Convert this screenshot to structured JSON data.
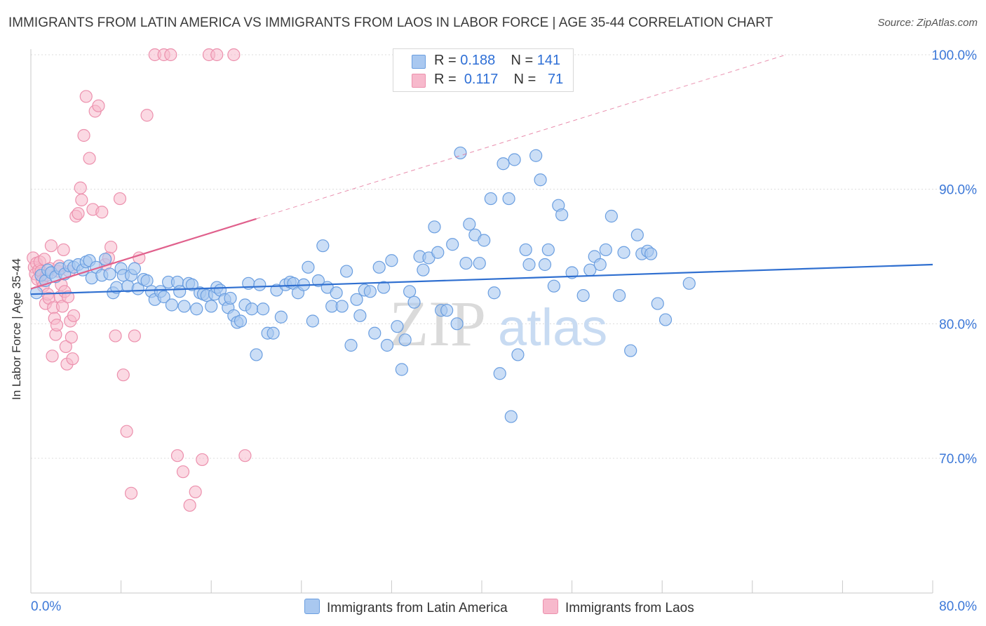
{
  "header": {
    "title": "IMMIGRANTS FROM LATIN AMERICA VS IMMIGRANTS FROM LAOS IN LABOR FORCE | AGE 35-44 CORRELATION CHART",
    "source": "Source: ZipAtlas.com"
  },
  "legend": {
    "r_label": "R =",
    "n_label": "N =",
    "series_a": {
      "r": "0.188",
      "n": "141"
    },
    "series_b": {
      "r": "0.117",
      "n": "71"
    }
  },
  "watermark": {
    "part1": "ZIP",
    "part2": "atlas"
  },
  "chart_data": {
    "type": "scatter",
    "title": "IMMIGRANTS FROM LATIN AMERICA VS IMMIGRANTS FROM LAOS IN LABOR FORCE | AGE 35-44 CORRELATION CHART",
    "xlabel": "",
    "ylabel": "In Labor Force | Age 35-44",
    "xlim": [
      0,
      80
    ],
    "ylim": [
      61,
      101
    ],
    "x_tick_labels": [
      "0.0%",
      "80.0%"
    ],
    "y_ticks": [
      70,
      80,
      90,
      100
    ],
    "y_tick_labels": [
      "70.0%",
      "80.0%",
      "90.0%",
      "100.0%"
    ],
    "grid": true,
    "legend_position": "top-center",
    "colors": {
      "series_a_fill": "#a9c8f0",
      "series_a_stroke": "#6a9ee0",
      "series_a_line": "#2f6fd0",
      "series_b_fill": "#f7b9cc",
      "series_b_stroke": "#ec90ad",
      "series_b_line": "#e0608c",
      "tick_label": "#3c78d8"
    },
    "series": [
      {
        "name": "Immigrants from Latin America",
        "r": 0.188,
        "n": 141,
        "trend": {
          "x": [
            0,
            80
          ],
          "y": [
            82.2,
            84.4
          ]
        },
        "points": [
          [
            0.5,
            82.3
          ],
          [
            0.9,
            83.6
          ],
          [
            1.3,
            83.2
          ],
          [
            1.5,
            84.0
          ],
          [
            1.8,
            83.8
          ],
          [
            2.2,
            83.5
          ],
          [
            2.6,
            84.1
          ],
          [
            3.0,
            83.7
          ],
          [
            3.4,
            84.3
          ],
          [
            3.8,
            84.2
          ],
          [
            4.2,
            84.4
          ],
          [
            4.6,
            84.0
          ],
          [
            4.9,
            84.6
          ],
          [
            5.2,
            84.7
          ],
          [
            5.4,
            83.4
          ],
          [
            5.8,
            84.2
          ],
          [
            6.3,
            83.6
          ],
          [
            6.6,
            84.8
          ],
          [
            7.0,
            83.7
          ],
          [
            7.3,
            82.3
          ],
          [
            7.6,
            82.7
          ],
          [
            8.0,
            84.1
          ],
          [
            8.2,
            83.6
          ],
          [
            8.6,
            82.8
          ],
          [
            8.9,
            83.6
          ],
          [
            9.2,
            84.1
          ],
          [
            9.5,
            82.6
          ],
          [
            10.0,
            83.3
          ],
          [
            10.3,
            83.2
          ],
          [
            10.7,
            82.4
          ],
          [
            11.0,
            81.8
          ],
          [
            11.5,
            82.4
          ],
          [
            11.8,
            82.0
          ],
          [
            12.2,
            83.1
          ],
          [
            12.5,
            81.4
          ],
          [
            13.0,
            83.1
          ],
          [
            13.2,
            82.4
          ],
          [
            13.6,
            81.3
          ],
          [
            14.0,
            83.0
          ],
          [
            14.3,
            82.9
          ],
          [
            14.7,
            81.1
          ],
          [
            15.0,
            82.3
          ],
          [
            15.3,
            82.2
          ],
          [
            15.6,
            82.1
          ],
          [
            16.0,
            81.3
          ],
          [
            16.3,
            82.2
          ],
          [
            16.5,
            82.7
          ],
          [
            16.8,
            82.5
          ],
          [
            17.2,
            81.8
          ],
          [
            17.5,
            81.2
          ],
          [
            17.7,
            81.9
          ],
          [
            18.0,
            80.6
          ],
          [
            18.3,
            80.1
          ],
          [
            18.6,
            80.2
          ],
          [
            19.0,
            81.4
          ],
          [
            19.3,
            83.0
          ],
          [
            19.6,
            81.1
          ],
          [
            20.0,
            77.7
          ],
          [
            20.3,
            82.9
          ],
          [
            20.6,
            81.1
          ],
          [
            21.0,
            79.3
          ],
          [
            21.5,
            79.3
          ],
          [
            21.8,
            82.5
          ],
          [
            22.2,
            80.5
          ],
          [
            22.6,
            82.9
          ],
          [
            23.0,
            83.1
          ],
          [
            23.3,
            83.0
          ],
          [
            23.7,
            82.3
          ],
          [
            24.2,
            82.9
          ],
          [
            24.6,
            84.2
          ],
          [
            25.0,
            80.2
          ],
          [
            25.5,
            83.2
          ],
          [
            25.9,
            85.8
          ],
          [
            26.3,
            82.7
          ],
          [
            26.7,
            81.3
          ],
          [
            27.1,
            82.3
          ],
          [
            27.6,
            81.3
          ],
          [
            28.0,
            83.9
          ],
          [
            28.4,
            78.4
          ],
          [
            28.9,
            81.8
          ],
          [
            29.2,
            80.6
          ],
          [
            29.6,
            82.5
          ],
          [
            30.1,
            82.4
          ],
          [
            30.5,
            79.3
          ],
          [
            30.9,
            84.2
          ],
          [
            31.3,
            82.7
          ],
          [
            31.6,
            78.4
          ],
          [
            32.0,
            84.7
          ],
          [
            32.5,
            79.8
          ],
          [
            32.9,
            76.6
          ],
          [
            33.2,
            78.8
          ],
          [
            33.6,
            82.4
          ],
          [
            34.0,
            81.6
          ],
          [
            34.5,
            85.0
          ],
          [
            34.8,
            84.0
          ],
          [
            35.3,
            84.9
          ],
          [
            35.8,
            87.2
          ],
          [
            36.1,
            85.3
          ],
          [
            36.4,
            81.0
          ],
          [
            36.9,
            81.0
          ],
          [
            37.4,
            85.9
          ],
          [
            37.8,
            80.0
          ],
          [
            38.1,
            92.7
          ],
          [
            38.6,
            84.5
          ],
          [
            38.9,
            87.4
          ],
          [
            39.4,
            86.6
          ],
          [
            39.8,
            84.5
          ],
          [
            40.2,
            86.2
          ],
          [
            40.8,
            89.3
          ],
          [
            41.1,
            82.3
          ],
          [
            41.6,
            76.3
          ],
          [
            41.9,
            91.9
          ],
          [
            42.4,
            89.3
          ],
          [
            42.6,
            73.1
          ],
          [
            42.9,
            92.2
          ],
          [
            43.2,
            77.7
          ],
          [
            43.9,
            85.5
          ],
          [
            44.2,
            84.4
          ],
          [
            44.8,
            92.5
          ],
          [
            45.2,
            90.7
          ],
          [
            45.6,
            84.4
          ],
          [
            45.9,
            85.5
          ],
          [
            46.4,
            82.8
          ],
          [
            46.8,
            88.8
          ],
          [
            47.1,
            88.1
          ],
          [
            48.0,
            83.8
          ],
          [
            49.0,
            82.1
          ],
          [
            49.6,
            84.0
          ],
          [
            50.0,
            85.0
          ],
          [
            50.5,
            84.4
          ],
          [
            51.0,
            85.5
          ],
          [
            51.5,
            88.0
          ],
          [
            52.2,
            82.1
          ],
          [
            52.6,
            85.3
          ],
          [
            53.2,
            78.0
          ],
          [
            53.8,
            86.6
          ],
          [
            54.2,
            85.2
          ],
          [
            54.7,
            85.4
          ],
          [
            55.0,
            85.2
          ],
          [
            55.6,
            81.5
          ],
          [
            56.3,
            80.3
          ],
          [
            58.4,
            83.0
          ]
        ]
      },
      {
        "name": "Immigrants from Laos",
        "r": 0.117,
        "n": 71,
        "trend": {
          "x": [
            0,
            20
          ],
          "y": [
            82.6,
            87.8
          ]
        },
        "trend_extension": {
          "x": [
            20,
            67
          ],
          "y": [
            87.8,
            100.0
          ]
        },
        "points": [
          [
            0.2,
            84.9
          ],
          [
            0.3,
            84.2
          ],
          [
            0.4,
            83.7
          ],
          [
            0.5,
            84.5
          ],
          [
            0.6,
            83.3
          ],
          [
            0.7,
            84.0
          ],
          [
            0.8,
            84.6
          ],
          [
            0.9,
            83.9
          ],
          [
            1.0,
            83.2
          ],
          [
            1.1,
            82.8
          ],
          [
            1.2,
            84.8
          ],
          [
            1.3,
            81.5
          ],
          [
            1.4,
            83.6
          ],
          [
            1.5,
            82.2
          ],
          [
            1.6,
            81.9
          ],
          [
            1.7,
            84.1
          ],
          [
            1.8,
            85.8
          ],
          [
            1.9,
            77.6
          ],
          [
            2.0,
            81.2
          ],
          [
            2.1,
            80.4
          ],
          [
            2.2,
            79.2
          ],
          [
            2.3,
            79.9
          ],
          [
            2.4,
            83.9
          ],
          [
            2.5,
            84.3
          ],
          [
            2.6,
            82.0
          ],
          [
            2.7,
            82.9
          ],
          [
            2.8,
            81.3
          ],
          [
            2.9,
            85.5
          ],
          [
            3.0,
            82.4
          ],
          [
            3.1,
            78.3
          ],
          [
            3.2,
            77.0
          ],
          [
            3.3,
            82.0
          ],
          [
            3.4,
            83.9
          ],
          [
            3.5,
            80.2
          ],
          [
            3.6,
            79.0
          ],
          [
            3.7,
            77.4
          ],
          [
            3.8,
            80.6
          ],
          [
            4.0,
            88.0
          ],
          [
            4.2,
            88.2
          ],
          [
            4.4,
            90.1
          ],
          [
            4.5,
            89.2
          ],
          [
            4.7,
            94.0
          ],
          [
            4.9,
            96.9
          ],
          [
            5.2,
            92.3
          ],
          [
            5.5,
            88.5
          ],
          [
            5.7,
            95.8
          ],
          [
            6.0,
            96.2
          ],
          [
            6.3,
            88.3
          ],
          [
            6.6,
            84.4
          ],
          [
            6.9,
            84.9
          ],
          [
            7.1,
            85.7
          ],
          [
            7.5,
            79.1
          ],
          [
            7.9,
            89.3
          ],
          [
            8.2,
            76.2
          ],
          [
            8.5,
            72.0
          ],
          [
            8.9,
            67.4
          ],
          [
            9.2,
            79.1
          ],
          [
            9.6,
            84.9
          ],
          [
            10.3,
            95.5
          ],
          [
            11.0,
            100.0
          ],
          [
            11.8,
            100.0
          ],
          [
            12.4,
            100.0
          ],
          [
            13.0,
            70.2
          ],
          [
            13.5,
            69.0
          ],
          [
            14.1,
            66.5
          ],
          [
            14.6,
            67.5
          ],
          [
            15.2,
            69.9
          ],
          [
            15.8,
            100.0
          ],
          [
            16.5,
            100.0
          ],
          [
            18.0,
            100.0
          ],
          [
            19.0,
            70.2
          ]
        ]
      }
    ]
  },
  "bottom_legend": {
    "series_a": "Immigrants from Latin America",
    "series_b": "Immigrants from Laos"
  }
}
